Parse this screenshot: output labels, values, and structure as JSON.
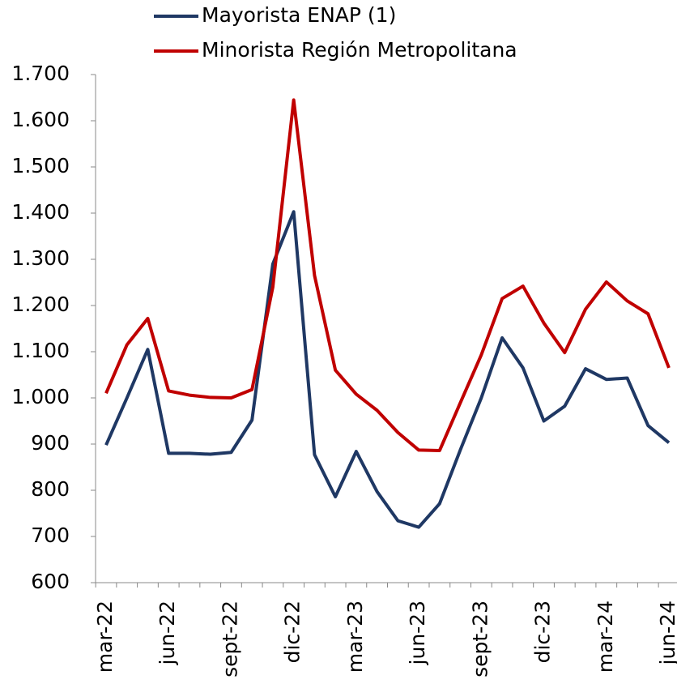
{
  "chart_data": {
    "type": "line",
    "categories": [
      "mar-22",
      null,
      null,
      "jun-22",
      null,
      null,
      "sept-22",
      null,
      null,
      "dic-22",
      null,
      null,
      "mar-23",
      null,
      null,
      "jun-23",
      null,
      null,
      "sept-23",
      null,
      null,
      "dic-23",
      null,
      null,
      "mar-24",
      null,
      null,
      "jun-24"
    ],
    "series": [
      {
        "name": "Mayorista ENAP (1)",
        "color": "#1f3864",
        "values": [
          898,
          1000,
          1105,
          880,
          880,
          878,
          882,
          952,
          1290,
          1403,
          877,
          786,
          884,
          797,
          734,
          720,
          771,
          888,
          1000,
          1130,
          1065,
          950,
          982,
          1063,
          1040,
          1043,
          940,
          903
        ]
      },
      {
        "name": "Minorista Región Metropolitana",
        "color": "#c00000",
        "values": [
          1010,
          1115,
          1172,
          1015,
          1006,
          1001,
          1000,
          1018,
          1240,
          1645,
          1265,
          1060,
          1008,
          973,
          925,
          887,
          886,
          990,
          1093,
          1215,
          1242,
          1162,
          1098,
          1192,
          1251,
          1210,
          1182,
          1065
        ]
      }
    ],
    "ylim": [
      600,
      1700
    ],
    "yticks": [
      600,
      700,
      800,
      900,
      {
        "value": 1000,
        "label": "1.000"
      },
      {
        "value": 1100,
        "label": "1.100"
      },
      {
        "value": 1200,
        "label": "1.200"
      },
      {
        "value": 1300,
        "label": "1.300"
      },
      {
        "value": 1400,
        "label": "1.400"
      },
      {
        "value": 1500,
        "label": "1.500"
      },
      {
        "value": 1600,
        "label": "1.600"
      },
      {
        "value": 1700,
        "label": "1.700"
      }
    ],
    "grid": false,
    "legend": "top"
  }
}
